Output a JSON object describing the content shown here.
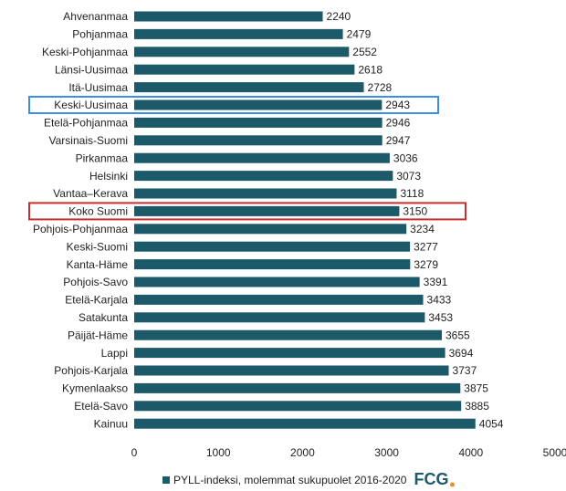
{
  "chart_data": {
    "type": "barh",
    "categories": [
      "Ahvenanmaa",
      "Pohjanmaa",
      "Keski-Pohjanmaa",
      "Länsi-Uusimaa",
      "Itä-Uusimaa",
      "Keski-Uusimaa",
      "Etelä-Pohjanmaa",
      "Varsinais-Suomi",
      "Pirkanmaa",
      "Helsinki",
      "Vantaa–Kerava",
      "Koko Suomi",
      "Pohjois-Pohjanmaa",
      "Keski-Suomi",
      "Kanta-Häme",
      "Pohjois-Savo",
      "Etelä-Karjala",
      "Satakunta",
      "Päijät-Häme",
      "Lappi",
      "Pohjois-Karjala",
      "Kymenlaakso",
      "Etelä-Savo",
      "Kainuu"
    ],
    "series": [
      {
        "name": "PYLL-indeksi, molemmat sukupuolet 2016-2020",
        "color": "#1d5a69",
        "values": [
          2240,
          2479,
          2552,
          2618,
          2728,
          2943,
          2946,
          2947,
          3036,
          3073,
          3118,
          3150,
          3234,
          3277,
          3279,
          3391,
          3433,
          3453,
          3655,
          3694,
          3737,
          3875,
          3885,
          4054
        ]
      }
    ],
    "xlim": [
      0,
      5000
    ],
    "xticks": [
      0,
      1000,
      2000,
      3000,
      4000,
      5000
    ],
    "highlights": [
      {
        "category": "Keski-Uusimaa",
        "color": "#3d8ee8"
      },
      {
        "category": "Koko Suomi",
        "color": "#c62f2f"
      }
    ],
    "logo": "FCG",
    "logo_color": "#1d5a69",
    "logo_dot_color": "#f28c28"
  }
}
